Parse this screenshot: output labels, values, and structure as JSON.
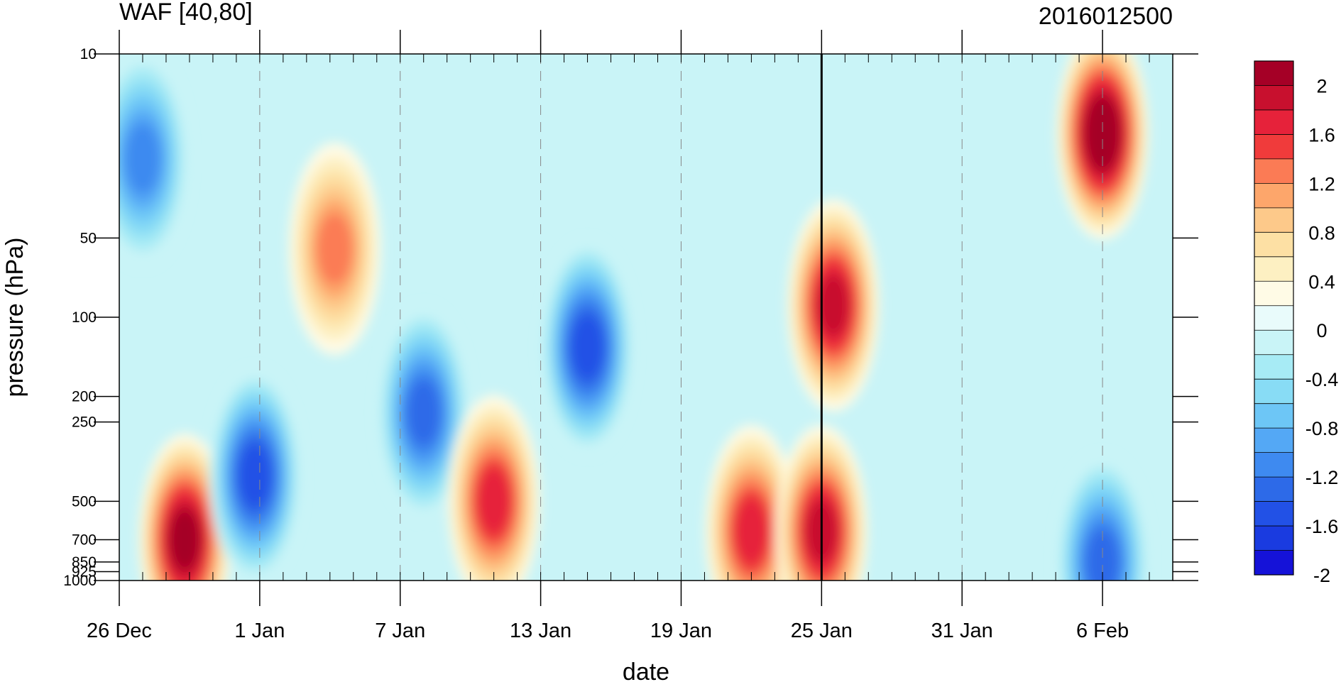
{
  "chart_data": {
    "type": "heatmap",
    "subtype": "filled-contour",
    "title_left": "WAF [40,80]",
    "title_right": "2016012500",
    "xlabel": "date",
    "ylabel": "pressure (hPa)",
    "x_ticks": [
      {
        "label": "26 Dec",
        "day": 0
      },
      {
        "label": "1 Jan",
        "day": 6
      },
      {
        "label": "7 Jan",
        "day": 12
      },
      {
        "label": "13 Jan",
        "day": 18
      },
      {
        "label": "19 Jan",
        "day": 24
      },
      {
        "label": "25 Jan",
        "day": 30
      },
      {
        "label": "31 Jan",
        "day": 36
      },
      {
        "label": "6 Feb",
        "day": 42
      }
    ],
    "x_range_days": [
      0,
      45
    ],
    "y_scale": "log",
    "y_range": [
      1000,
      10
    ],
    "y_ticks": [
      "10",
      "50",
      "100",
      "200",
      "250",
      "500",
      "700",
      "850",
      "925",
      "1000"
    ],
    "y_tick_values": [
      10,
      50,
      100,
      200,
      250,
      500,
      700,
      850,
      925,
      1000
    ],
    "marker_day": 30,
    "colorbar": {
      "labels": [
        "2",
        "1.6",
        "1.2",
        "0.8",
        "0.4",
        "0",
        "-0.4",
        "-0.8",
        "-1.2",
        "-1.6",
        "-2"
      ],
      "colors": [
        "#a50026",
        "#c8102e",
        "#e6223a",
        "#f03b3b",
        "#fb7b55",
        "#fda66b",
        "#fdc98a",
        "#fde0a4",
        "#fdf0c2",
        "#fffbe6",
        "#e9fbfb",
        "#c9f4f7",
        "#a7ebf5",
        "#88dcf5",
        "#6dc6f6",
        "#54a8f5",
        "#3e8af0",
        "#2d6ae8",
        "#2251e6",
        "#1a3be0",
        "#1512d8"
      ]
    },
    "features": [
      {
        "day": 2.8,
        "p": 700,
        "value": 2.0
      },
      {
        "day": 5.8,
        "p": 400,
        "value": -1.6
      },
      {
        "day": 9.2,
        "p": 55,
        "value": 1.2
      },
      {
        "day": 13.0,
        "p": 230,
        "value": -1.4
      },
      {
        "day": 16.0,
        "p": 500,
        "value": 1.6
      },
      {
        "day": 20.0,
        "p": 130,
        "value": -1.6
      },
      {
        "day": 27.0,
        "p": 650,
        "value": 1.6
      },
      {
        "day": 30.5,
        "p": 90,
        "value": 1.8
      },
      {
        "day": 30.0,
        "p": 650,
        "value": 1.8
      },
      {
        "day": 42.0,
        "p": 20,
        "value": 2.1
      },
      {
        "day": 42.0,
        "p": 850,
        "value": -1.4
      },
      {
        "day": 1.0,
        "p": 25,
        "value": -1.2
      }
    ]
  }
}
